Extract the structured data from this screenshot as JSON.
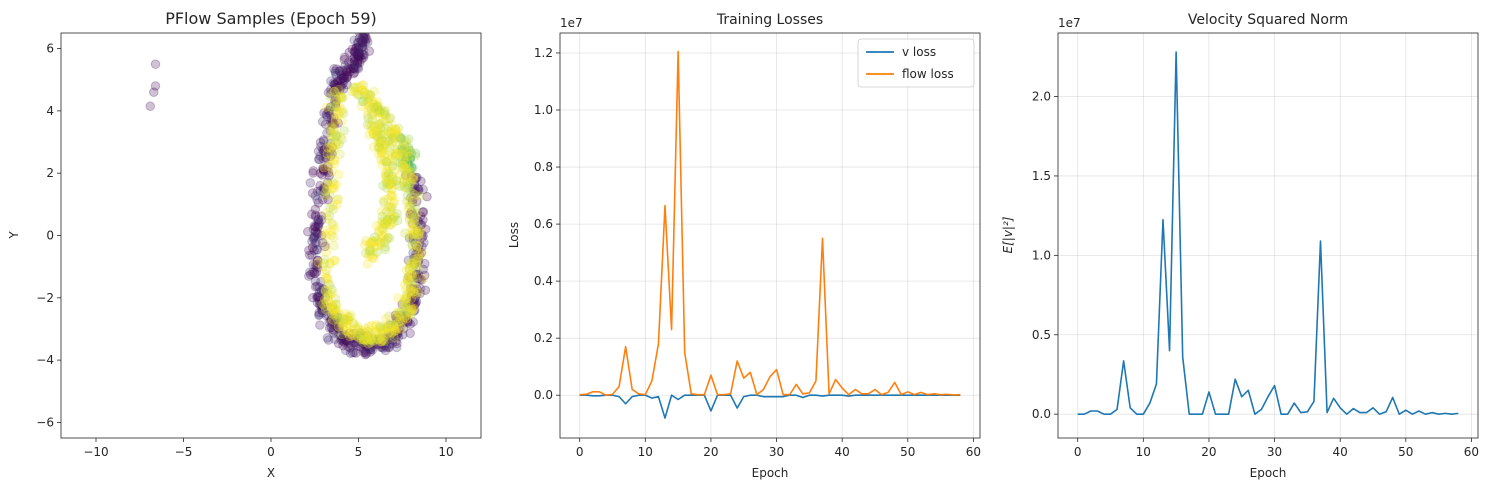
{
  "chart_data": [
    {
      "type": "scatter",
      "title": "PFlow Samples (Epoch 59)",
      "xlabel": "X",
      "ylabel": "Y",
      "xlim": [
        -12,
        12
      ],
      "ylim": [
        -6.5,
        6.5
      ],
      "xticks": [
        -10,
        -5,
        0,
        5,
        10
      ],
      "yticks": [
        -6,
        -4,
        -2,
        0,
        2,
        4,
        6
      ],
      "grid": false,
      "colormap": "viridis",
      "marker_alpha": 0.25,
      "outlier_points": [
        [
          -6.6,
          5.5
        ],
        [
          -6.6,
          4.8
        ],
        [
          -6.7,
          4.6
        ],
        [
          -6.9,
          4.15
        ]
      ],
      "bands": [
        {
          "description": "outer",
          "color_value": 0.05,
          "points": [
            [
              5.3,
              6.4
            ],
            [
              5.1,
              6.0
            ],
            [
              4.9,
              5.6
            ],
            [
              4.2,
              5.2
            ],
            [
              3.7,
              4.8
            ],
            [
              3.4,
              3.8
            ],
            [
              3.1,
              2.5
            ],
            [
              2.8,
              1.2
            ],
            [
              2.5,
              0.0
            ],
            [
              2.5,
              -1.2
            ],
            [
              2.9,
              -2.3
            ],
            [
              3.6,
              -3.0
            ],
            [
              4.4,
              -3.4
            ],
            [
              5.4,
              -3.6
            ],
            [
              6.4,
              -3.4
            ],
            [
              7.3,
              -3.0
            ],
            [
              8.0,
              -2.4
            ],
            [
              8.3,
              -1.4
            ],
            [
              8.4,
              0.0
            ],
            [
              8.3,
              1.4
            ],
            [
              7.9,
              2.4
            ],
            [
              7.4,
              3.0
            ]
          ]
        },
        {
          "description": "inner",
          "color_value": 0.98,
          "points": [
            [
              4.9,
              4.8
            ],
            [
              5.6,
              4.3
            ],
            [
              6.3,
              3.8
            ],
            [
              7.0,
              3.2
            ],
            [
              7.6,
              2.4
            ],
            [
              8.0,
              1.4
            ],
            [
              8.2,
              0.0
            ],
            [
              8.1,
              -1.2
            ],
            [
              7.9,
              -2.0
            ],
            [
              7.3,
              -2.8
            ],
            [
              6.5,
              -3.2
            ],
            [
              5.6,
              -3.3
            ],
            [
              4.7,
              -3.1
            ],
            [
              3.9,
              -2.7
            ],
            [
              3.3,
              -2.0
            ],
            [
              3.4,
              0.0
            ],
            [
              3.5,
              2.0
            ],
            [
              3.6,
              3.5
            ],
            [
              3.9,
              4.8
            ]
          ]
        },
        {
          "description": "inner-hook",
          "color_value": 0.98,
          "points": [
            [
              5.7,
              3.6
            ],
            [
              6.3,
              3.0
            ],
            [
              6.8,
              2.2
            ],
            [
              6.9,
              1.4
            ],
            [
              6.7,
              0.5
            ],
            [
              6.2,
              -0.2
            ],
            [
              5.6,
              -0.6
            ]
          ]
        }
      ]
    },
    {
      "type": "line",
      "title": "Training Losses",
      "xlabel": "Epoch",
      "ylabel": "Loss",
      "scale_label": "1e7",
      "xlim": [
        -3,
        61
      ],
      "ylim": [
        -0.15,
        1.27
      ],
      "xticks": [
        0,
        10,
        20,
        30,
        40,
        50,
        60
      ],
      "yticks": [
        0.0,
        0.2,
        0.4,
        0.6,
        0.8,
        1.0,
        1.2
      ],
      "ytick_labels": [
        "0.0",
        "0.2",
        "0.4",
        "0.6",
        "0.8",
        "1.0",
        "1.2"
      ],
      "grid": true,
      "legend": "top-right",
      "x": [
        0,
        1,
        2,
        3,
        4,
        5,
        6,
        7,
        8,
        9,
        10,
        11,
        12,
        13,
        14,
        15,
        16,
        17,
        18,
        19,
        20,
        21,
        22,
        23,
        24,
        25,
        26,
        27,
        28,
        29,
        30,
        31,
        32,
        33,
        34,
        35,
        36,
        37,
        38,
        39,
        40,
        41,
        42,
        43,
        44,
        45,
        46,
        47,
        48,
        49,
        50,
        51,
        52,
        53,
        54,
        55,
        56,
        57,
        58
      ],
      "series": [
        {
          "name": "v loss",
          "color": "#1f77b4",
          "values": [
            0,
            0,
            -0.002,
            -0.002,
            0,
            0,
            -0.005,
            -0.03,
            -0.005,
            0,
            0,
            -0.01,
            -0.005,
            -0.08,
            0,
            -0.015,
            0,
            0,
            0,
            0,
            -0.055,
            0,
            0,
            0,
            -0.045,
            -0.005,
            0,
            0,
            -0.005,
            -0.005,
            -0.005,
            -0.005,
            0,
            0,
            -0.008,
            0,
            0,
            -0.003,
            0,
            0,
            0,
            -0.003,
            0,
            0,
            0,
            0,
            0,
            0,
            0,
            0,
            0,
            0,
            0,
            0,
            0,
            0,
            0,
            0,
            0
          ]
        },
        {
          "name": "flow loss",
          "color": "#ff7f0e",
          "values": [
            0.002,
            0.003,
            0.012,
            0.012,
            0,
            0.003,
            0.03,
            0.17,
            0.02,
            0.005,
            0.002,
            0.05,
            0.18,
            0.665,
            0.23,
            1.205,
            0.15,
            0.005,
            0.002,
            0.002,
            0.07,
            0.002,
            0.002,
            0.005,
            0.12,
            0.06,
            0.08,
            0.002,
            0.02,
            0.065,
            0.09,
            0.002,
            0.002,
            0.038,
            0.005,
            0.008,
            0.05,
            0.55,
            0.005,
            0.055,
            0.025,
            0.002,
            0.02,
            0.005,
            0.005,
            0.02,
            0.002,
            0.01,
            0.045,
            0.002,
            0.012,
            0.002,
            0.01,
            0.002,
            0.005,
            0.002,
            0.003,
            0.001,
            0.002
          ]
        }
      ]
    },
    {
      "type": "line",
      "title": "Velocity Squared Norm",
      "xlabel": "Epoch",
      "ylabel": "E[|v|²]",
      "scale_label": "1e7",
      "xlim": [
        -3,
        61
      ],
      "ylim": [
        -0.15,
        2.4
      ],
      "xticks": [
        0,
        10,
        20,
        30,
        40,
        50,
        60
      ],
      "yticks": [
        0.0,
        0.5,
        1.0,
        1.5,
        2.0
      ],
      "ytick_labels": [
        "0.0",
        "0.5",
        "1.0",
        "1.5",
        "2.0"
      ],
      "grid": true,
      "x": [
        0,
        1,
        2,
        3,
        4,
        5,
        6,
        7,
        8,
        9,
        10,
        11,
        12,
        13,
        14,
        15,
        16,
        17,
        18,
        19,
        20,
        21,
        22,
        23,
        24,
        25,
        26,
        27,
        28,
        29,
        30,
        31,
        32,
        33,
        34,
        35,
        36,
        37,
        38,
        39,
        40,
        41,
        42,
        43,
        44,
        45,
        46,
        47,
        48,
        49,
        50,
        51,
        52,
        53,
        54,
        55,
        56,
        57,
        58
      ],
      "series": [
        {
          "color": "#1f77b4",
          "values": [
            0,
            0,
            0.02,
            0.02,
            0,
            0,
            0.03,
            0.335,
            0.04,
            0,
            0,
            0.07,
            0.19,
            1.225,
            0.4,
            2.28,
            0.36,
            0,
            0,
            0,
            0.14,
            0,
            0,
            0,
            0.22,
            0.11,
            0.15,
            0,
            0.03,
            0.11,
            0.18,
            0,
            0,
            0.07,
            0.01,
            0.015,
            0.08,
            1.09,
            0.01,
            0.1,
            0.04,
            0,
            0.035,
            0.01,
            0.01,
            0.04,
            0,
            0.015,
            0.105,
            0,
            0.025,
            0,
            0.02,
            0,
            0.01,
            0,
            0.005,
            0,
            0.005
          ]
        }
      ]
    }
  ]
}
